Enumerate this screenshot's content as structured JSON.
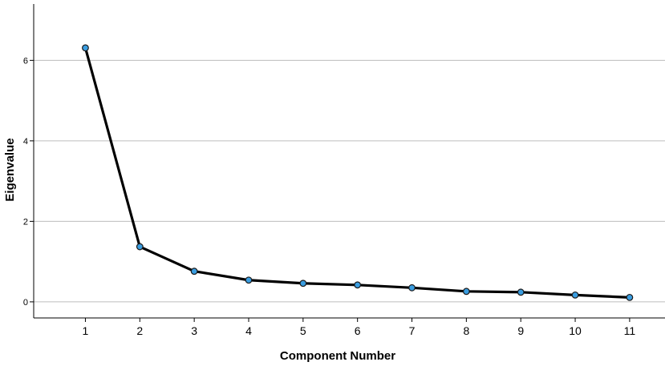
{
  "chart_data": {
    "type": "line",
    "title": "",
    "xlabel": "Component Number",
    "ylabel": "Eigenvalue",
    "x": [
      1,
      2,
      3,
      4,
      5,
      6,
      7,
      8,
      9,
      10,
      11
    ],
    "series": [
      {
        "values": [
          6.31,
          1.37,
          0.76,
          0.54,
          0.46,
          0.42,
          0.35,
          0.26,
          0.24,
          0.17,
          0.11
        ]
      }
    ],
    "xlim": [
      0.05,
      11.65
    ],
    "ylim": [
      -0.4,
      7.4
    ],
    "yticks": [
      0,
      2,
      4,
      6
    ],
    "xticks": [
      1,
      2,
      3,
      4,
      5,
      6,
      7,
      8,
      9,
      10,
      11
    ],
    "grid": "horizontal",
    "line_color": "#000000",
    "marker_fill": "#3a9de0",
    "marker_stroke": "#1a1a1a"
  }
}
